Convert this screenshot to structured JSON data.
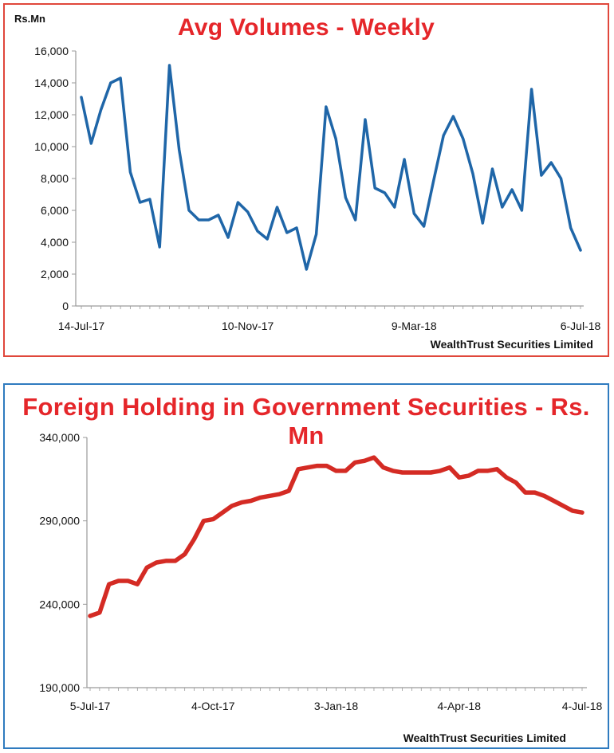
{
  "chart_data": [
    {
      "type": "line",
      "title": "Avg Volumes - Weekly",
      "ylabel": "Rs.Mn",
      "source": "WealthTrust Securities Limited",
      "ylim": [
        0,
        16000
      ],
      "y_ticks": [
        "0",
        "2,000",
        "4,000",
        "6,000",
        "8,000",
        "10,000",
        "12,000",
        "14,000",
        "16,000"
      ],
      "x_ticks": [
        "14-Jul-17",
        "10-Nov-17",
        "9-Mar-18",
        "6-Jul-18"
      ],
      "x_tick_index": [
        0,
        17,
        34,
        51
      ],
      "grid": false,
      "line_color": "#1f66a8",
      "series": [
        {
          "values": [
            13100,
            10200,
            12300,
            14000,
            14300,
            8400,
            6500,
            6700,
            3700,
            15100,
            9800,
            6000,
            5400,
            5400,
            5700,
            4300,
            6500,
            5900,
            4700,
            4200,
            6200,
            4600,
            4900,
            2300,
            4500,
            12500,
            10500,
            6800,
            5400,
            11700,
            7400,
            7100,
            6200,
            9200,
            5800,
            5000,
            7900,
            10700,
            11900,
            10500,
            8300,
            5200,
            8600,
            6200,
            7300,
            6000,
            13600,
            8200,
            9000,
            8000,
            4900,
            3500
          ]
        }
      ]
    },
    {
      "type": "line",
      "title": "Foreign Holding in Government Securities - Rs. Mn",
      "source": "WealthTrust Securities Limited",
      "ylim": [
        190000,
        340000
      ],
      "y_ticks": [
        "190,000",
        "240,000",
        "290,000",
        "340,000"
      ],
      "x_ticks": [
        "5-Jul-17",
        "4-Oct-17",
        "3-Jan-18",
        "4-Apr-18",
        "4-Jul-18"
      ],
      "x_tick_index": [
        0,
        13,
        26,
        39,
        52
      ],
      "grid": false,
      "line_color": "#d42b24",
      "series": [
        {
          "values": [
            233000,
            235000,
            252000,
            254000,
            254000,
            252000,
            262000,
            265000,
            266000,
            266000,
            270000,
            279000,
            290000,
            291000,
            295000,
            299000,
            301000,
            302000,
            304000,
            305000,
            306000,
            308000,
            321000,
            322000,
            323000,
            323000,
            320000,
            320000,
            325000,
            326000,
            328000,
            322000,
            320000,
            319000,
            319000,
            319000,
            319000,
            320000,
            322000,
            316000,
            317000,
            320000,
            320000,
            321000,
            316000,
            313000,
            307000,
            307000,
            305000,
            302000,
            299000,
            296000,
            295000
          ]
        }
      ]
    }
  ]
}
